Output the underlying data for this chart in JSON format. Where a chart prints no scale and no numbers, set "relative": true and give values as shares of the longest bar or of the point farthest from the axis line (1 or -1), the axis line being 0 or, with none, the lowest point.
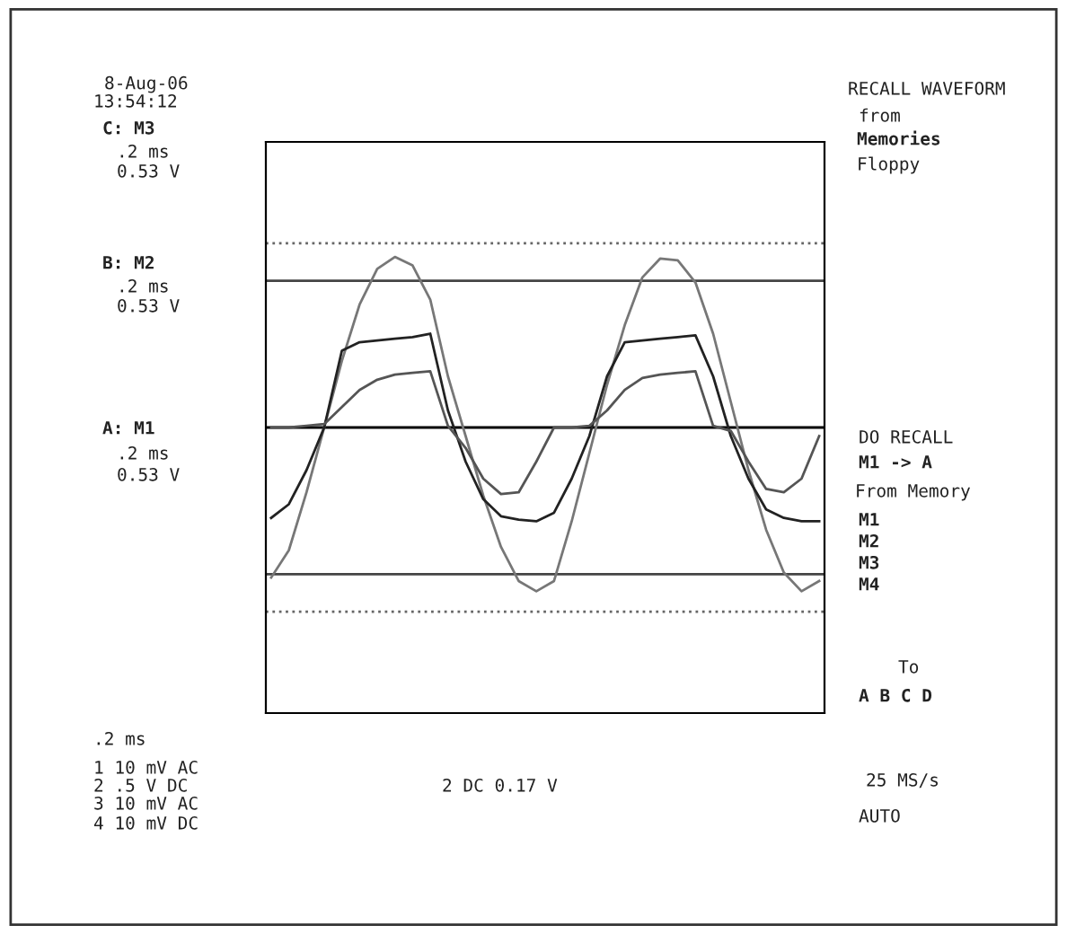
{
  "chart_data": {
    "type": "line",
    "relative": true,
    "categories": [
      null,
      null,
      null,
      null,
      null,
      null,
      null,
      null,
      null,
      null,
      null,
      null,
      null,
      null,
      null,
      null,
      null,
      null,
      null,
      null,
      null,
      null,
      null,
      null,
      null,
      null,
      null,
      null,
      null,
      null,
      null,
      null
    ],
    "series": [
      {
        "color": "#777777",
        "values": [
          -0.88,
          -0.72,
          -0.38,
          0,
          0.39,
          0.72,
          0.93,
          1.0,
          0.95,
          0.75,
          0.3,
          -0.05,
          -0.4,
          -0.7,
          -0.9,
          -0.96,
          -0.9,
          -0.55,
          -0.15,
          0.25,
          0.6,
          0.88,
          0.99,
          0.98,
          0.85,
          0.55,
          0.15,
          -0.25,
          -0.6,
          -0.85,
          -0.96,
          -0.9
        ]
      },
      {
        "color": "#222222",
        "values": [
          -0.53,
          -0.45,
          -0.25,
          0,
          0.45,
          0.5,
          0.51,
          0.52,
          0.53,
          0.55,
          0.1,
          -0.2,
          -0.42,
          -0.52,
          -0.54,
          -0.55,
          -0.5,
          -0.3,
          -0.05,
          0.3,
          0.5,
          0.51,
          0.52,
          0.53,
          0.54,
          0.3,
          -0.05,
          -0.3,
          -0.48,
          -0.53,
          -0.55,
          -0.55
        ]
      },
      {
        "color": "#555555",
        "values": [
          0,
          0,
          0.01,
          0.02,
          0.12,
          0.22,
          0.28,
          0.31,
          0.32,
          0.33,
          0.01,
          -0.12,
          -0.3,
          -0.39,
          -0.38,
          -0.2,
          0,
          0,
          0.01,
          0.1,
          0.22,
          0.29,
          0.31,
          0.32,
          0.33,
          0.01,
          -0.02,
          -0.2,
          -0.36,
          -0.38,
          -0.3,
          -0.05
        ]
      }
    ],
    "ref_lines": [
      {
        "axis": "y",
        "value": 0,
        "color": "#000000",
        "line_style": "solid"
      },
      {
        "axis": "y",
        "value": 0.86,
        "color": "#444444",
        "line_style": "solid"
      },
      {
        "axis": "y",
        "value": -0.86,
        "color": "#444444",
        "line_style": "solid"
      },
      {
        "axis": "y",
        "value": 1.08,
        "color": "#666666",
        "line_style": "dotted"
      },
      {
        "axis": "y",
        "value": -1.08,
        "color": "#666666",
        "line_style": "dotted"
      }
    ],
    "annotations": [
      "8-Aug-06",
      "13:54:12",
      "C: M3",
      ".2 ms",
      "0.53 V",
      "B: M2",
      ".2 ms",
      "0.53 V",
      "A: M1",
      ".2 ms",
      "0.53 V",
      "RECALL WAVEFORM",
      "from",
      "Memories",
      "Floppy",
      "DO RECALL",
      "M1 -> A",
      "From Memory",
      "M1",
      "M2",
      "M3",
      "M4",
      "To",
      "A B C D",
      "25 MS/s",
      "AUTO",
      ".2 ms",
      "1 10 mV AC",
      "2 .5 V DC",
      "3 10 mV AC",
      "4 10 mV DC",
      "2 DC 0.17 V"
    ],
    "grid": false,
    "legend": false,
    "marker": "none",
    "line_style": "solid"
  }
}
